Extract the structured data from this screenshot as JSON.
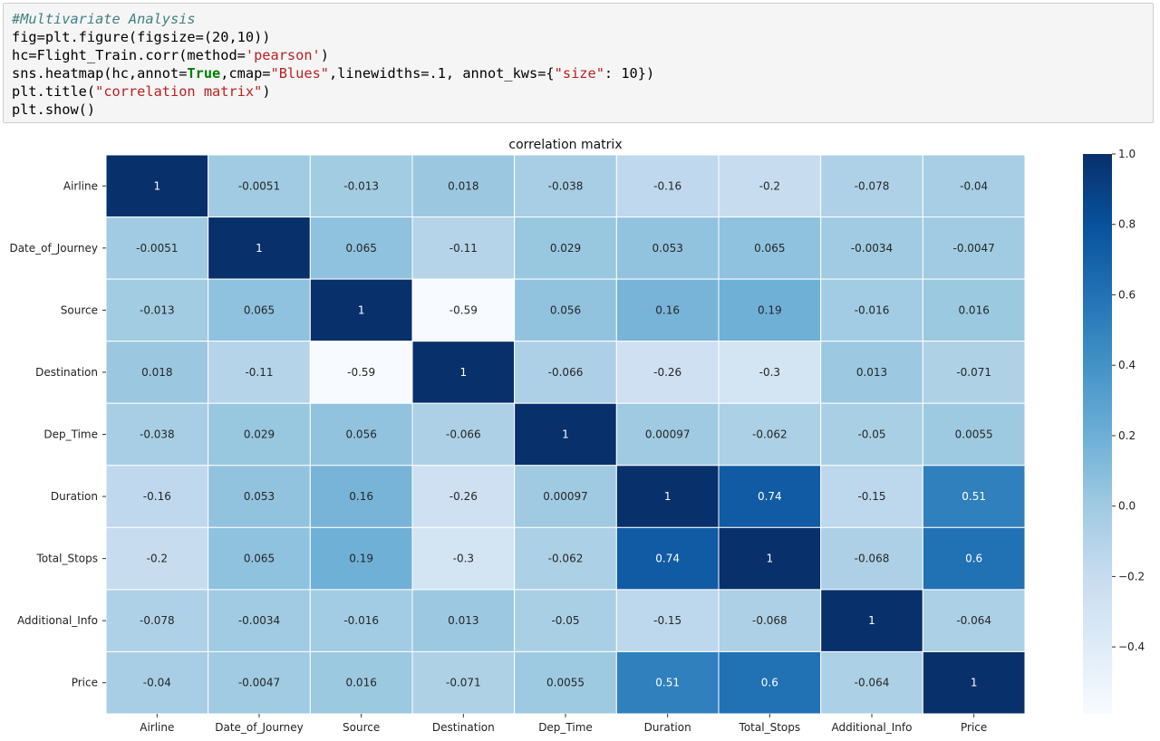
{
  "code_cell": {
    "lines": [
      [
        {
          "t": "#Multivariate Analysis",
          "c": "comment"
        }
      ],
      [
        {
          "t": "fig=plt.figure(figsize=(20,10))",
          "c": ""
        }
      ],
      [
        {
          "t": "hc=Flight_Train.corr(method=",
          "c": ""
        },
        {
          "t": "'pearson'",
          "c": "str"
        },
        {
          "t": ")",
          "c": ""
        }
      ],
      [
        {
          "t": "sns.heatmap(hc,annot=",
          "c": ""
        },
        {
          "t": "True",
          "c": "kw"
        },
        {
          "t": ",cmap=",
          "c": ""
        },
        {
          "t": "\"Blues\"",
          "c": "str"
        },
        {
          "t": ",linewidths=.1, annot_kws={",
          "c": ""
        },
        {
          "t": "\"size\"",
          "c": "str"
        },
        {
          "t": ": 10})",
          "c": ""
        }
      ],
      [
        {
          "t": "plt.title(",
          "c": ""
        },
        {
          "t": "\"correlation matrix\"",
          "c": "str"
        },
        {
          "t": ")",
          "c": ""
        }
      ],
      [
        {
          "t": "plt.show()",
          "c": ""
        }
      ]
    ]
  },
  "chart_data": {
    "type": "heatmap",
    "title": "correlation matrix",
    "cmap": "Blues",
    "vmin": -0.59,
    "vmax": 1.0,
    "labels": [
      "Airline",
      "Date_of_Journey",
      "Source",
      "Destination",
      "Dep_Time",
      "Duration",
      "Total_Stops",
      "Additional_Info",
      "Price"
    ],
    "values": [
      [
        1,
        -0.0051,
        -0.013,
        0.018,
        -0.038,
        -0.16,
        -0.2,
        -0.078,
        -0.04
      ],
      [
        -0.0051,
        1,
        0.065,
        -0.11,
        0.029,
        0.053,
        0.065,
        -0.0034,
        -0.0047
      ],
      [
        -0.013,
        0.065,
        1,
        -0.59,
        0.056,
        0.16,
        0.19,
        -0.016,
        0.016
      ],
      [
        0.018,
        -0.11,
        -0.59,
        1,
        -0.066,
        -0.26,
        -0.3,
        0.013,
        -0.071
      ],
      [
        -0.038,
        0.029,
        0.056,
        -0.066,
        1,
        0.00097,
        -0.062,
        -0.05,
        0.0055
      ],
      [
        -0.16,
        0.053,
        0.16,
        -0.26,
        0.00097,
        1,
        0.74,
        -0.15,
        0.51
      ],
      [
        -0.2,
        0.065,
        0.19,
        -0.3,
        -0.062,
        0.74,
        1,
        -0.068,
        0.6
      ],
      [
        -0.078,
        -0.0034,
        -0.016,
        0.013,
        -0.05,
        -0.15,
        -0.068,
        1,
        -0.064
      ],
      [
        -0.04,
        -0.0047,
        0.016,
        -0.071,
        0.0055,
        0.51,
        0.6,
        -0.064,
        1
      ]
    ],
    "annotations": [
      [
        "1",
        "-0.0051",
        "-0.013",
        "0.018",
        "-0.038",
        "-0.16",
        "-0.2",
        "-0.078",
        "-0.04"
      ],
      [
        "-0.0051",
        "1",
        "0.065",
        "-0.11",
        "0.029",
        "0.053",
        "0.065",
        "-0.0034",
        "-0.0047"
      ],
      [
        "-0.013",
        "0.065",
        "1",
        "-0.59",
        "0.056",
        "0.16",
        "0.19",
        "-0.016",
        "0.016"
      ],
      [
        "0.018",
        "-0.11",
        "-0.59",
        "1",
        "-0.066",
        "-0.26",
        "-0.3",
        "0.013",
        "-0.071"
      ],
      [
        "-0.038",
        "0.029",
        "0.056",
        "-0.066",
        "1",
        "0.00097",
        "-0.062",
        "-0.05",
        "0.0055"
      ],
      [
        "-0.16",
        "0.053",
        "0.16",
        "-0.26",
        "0.00097",
        "1",
        "0.74",
        "-0.15",
        "0.51"
      ],
      [
        "-0.2",
        "0.065",
        "0.19",
        "-0.3",
        "-0.062",
        "0.74",
        "1",
        "-0.068",
        "0.6"
      ],
      [
        "-0.078",
        "-0.0034",
        "-0.016",
        "0.013",
        "-0.05",
        "-0.15",
        "-0.068",
        "1",
        "-0.064"
      ],
      [
        "-0.04",
        "-0.0047",
        "0.016",
        "-0.071",
        "0.0055",
        "0.51",
        "0.6",
        "-0.064",
        "1"
      ]
    ],
    "colorbar_ticks": [
      1.0,
      0.8,
      0.6,
      0.4,
      0.2,
      0.0,
      -0.2,
      -0.4
    ],
    "colorbar_tick_labels": [
      "1.0",
      "0.8",
      "0.6",
      "0.4",
      "0.2",
      "0.0",
      "−0.2",
      "−0.4"
    ]
  }
}
